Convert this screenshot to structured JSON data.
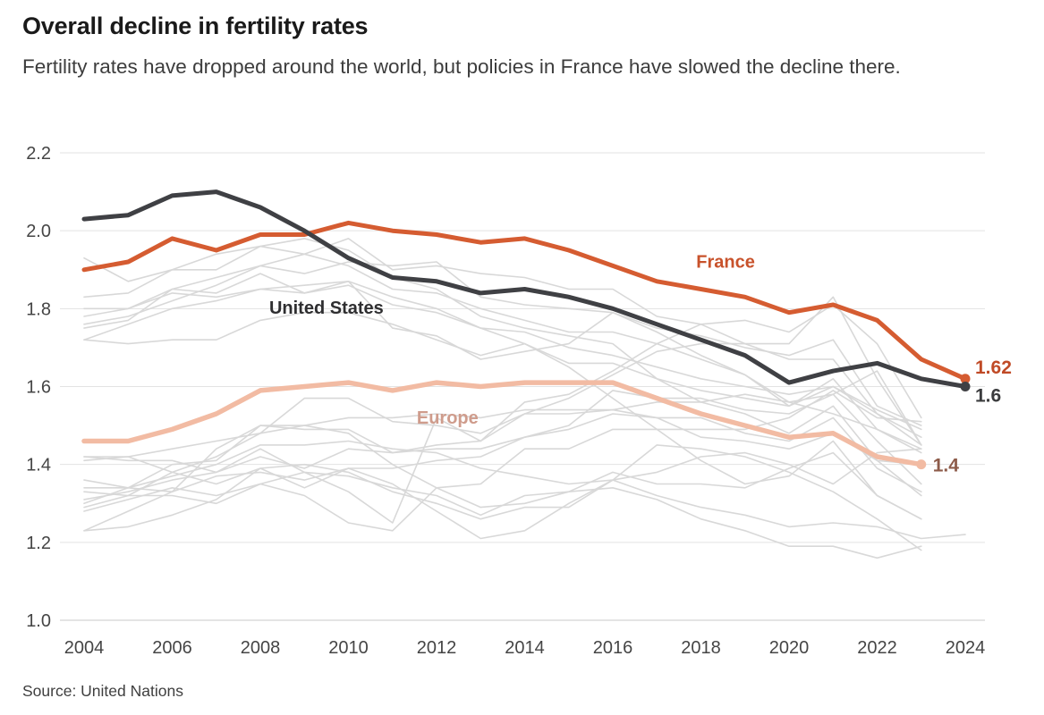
{
  "header": {
    "title": "Overall decline in fertility rates",
    "subtitle": "Fertility rates have dropped around the world, but policies in France have slowed the decline there."
  },
  "source": {
    "label": "Source: United Nations"
  },
  "chart_data": {
    "type": "line",
    "title": "Overall decline in fertility rates",
    "xlabel": "",
    "ylabel": "",
    "x_range": [
      2004,
      2024
    ],
    "x_ticks": [
      2004,
      2006,
      2008,
      2010,
      2012,
      2014,
      2016,
      2018,
      2020,
      2022,
      2024
    ],
    "y_range": [
      1.0,
      2.2
    ],
    "y_ticks": [
      "1.0",
      "1.2",
      "1.4",
      "1.6",
      "1.8",
      "2.0",
      "2.2"
    ],
    "grid": true,
    "legend": "inline labels on lines",
    "series": [
      {
        "name": "Europe",
        "color": "#f2bba3",
        "label_color": "#cf9c8c",
        "start_year": 2004,
        "values": [
          1.46,
          1.46,
          1.49,
          1.53,
          1.59,
          1.6,
          1.61,
          1.59,
          1.61,
          1.6,
          1.61,
          1.61,
          1.61,
          1.57,
          1.53,
          1.5,
          1.47,
          1.48,
          1.42,
          1.4
        ],
        "end_label": "1.4",
        "end_label_color": "#8d5b4a",
        "line_width": 5.5
      },
      {
        "name": "France",
        "color": "#d55c31",
        "label_color": "#c8522b",
        "start_year": 2004,
        "values": [
          1.9,
          1.92,
          1.98,
          1.95,
          1.99,
          1.99,
          2.02,
          2.0,
          1.99,
          1.97,
          1.98,
          1.95,
          1.91,
          1.87,
          1.85,
          1.83,
          1.79,
          1.81,
          1.77,
          1.67,
          1.62
        ],
        "end_label": "1.62",
        "end_label_color": "#c04a26",
        "line_width": 5
      },
      {
        "name": "United States",
        "color": "#3f4044",
        "label_color": "#2e2e30",
        "start_year": 2004,
        "values": [
          2.03,
          2.04,
          2.09,
          2.1,
          2.06,
          2.0,
          1.93,
          1.88,
          1.87,
          1.84,
          1.85,
          1.83,
          1.8,
          1.76,
          1.72,
          1.68,
          1.61,
          1.64,
          1.66,
          1.62,
          1.6
        ],
        "end_label": "1.6",
        "end_label_color": "#3b3c3e",
        "line_width": 5
      }
    ],
    "annotations": [
      {
        "text": "United States",
        "color": "#2e2e30",
        "year": 5.5,
        "value": 1.803,
        "font_size": 20
      },
      {
        "text": "France",
        "color": "#c8522b",
        "year": 14.56,
        "value": 1.921,
        "font_size": 20
      },
      {
        "text": "Europe",
        "color": "#cf9c8c",
        "year": 8.25,
        "value": 1.521,
        "font_size": 20
      }
    ],
    "background_series": {
      "description": "unlabeled light-gray context lines (individual countries)",
      "color": "#d8d8d8",
      "line_width": 1.6,
      "start_year": 2004,
      "lines": [
        [
          1.76,
          1.78,
          1.82,
          1.86,
          1.91,
          1.89,
          1.92,
          1.91,
          1.92,
          1.83,
          1.81,
          1.8,
          1.79,
          1.74,
          1.68,
          1.63,
          1.56,
          1.53,
          1.49,
          1.44
        ],
        [
          1.93,
          1.87,
          1.9,
          1.94,
          1.96,
          1.94,
          1.91,
          1.85,
          1.84,
          1.8,
          1.77,
          1.74,
          1.74,
          1.71,
          1.67,
          1.63,
          1.55,
          1.6,
          1.54,
          1.49
        ],
        [
          1.75,
          1.77,
          1.85,
          1.88,
          1.91,
          1.94,
          1.98,
          1.9,
          1.91,
          1.89,
          1.88,
          1.85,
          1.85,
          1.78,
          1.76,
          1.71,
          1.67,
          1.67,
          1.53,
          1.45
        ],
        [
          1.83,
          1.84,
          1.9,
          1.9,
          1.96,
          1.98,
          1.95,
          1.88,
          1.85,
          1.78,
          1.75,
          1.73,
          1.71,
          1.62,
          1.56,
          1.53,
          1.48,
          1.55,
          1.41,
          1.4
        ],
        [
          1.78,
          1.8,
          1.85,
          1.84,
          1.89,
          1.84,
          1.87,
          1.75,
          1.73,
          1.67,
          1.69,
          1.71,
          1.79,
          1.75,
          1.73,
          1.7,
          1.68,
          1.72,
          1.55,
          1.5
        ],
        [
          1.8,
          1.8,
          1.84,
          1.83,
          1.85,
          1.86,
          1.87,
          1.83,
          1.8,
          1.75,
          1.71,
          1.65,
          1.57,
          1.49,
          1.41,
          1.35,
          1.37,
          1.46,
          1.32,
          1.26
        ],
        [
          1.72,
          1.71,
          1.72,
          1.72,
          1.77,
          1.79,
          1.79,
          1.76,
          1.72,
          1.68,
          1.71,
          1.66,
          1.66,
          1.62,
          1.59,
          1.57,
          1.55,
          1.62,
          1.49,
          1.43
        ],
        [
          1.72,
          1.76,
          1.8,
          1.82,
          1.85,
          1.84,
          1.86,
          1.81,
          1.79,
          1.75,
          1.74,
          1.7,
          1.68,
          1.65,
          1.62,
          1.6,
          1.58,
          1.6,
          1.53,
          1.47
        ],
        [
          1.36,
          1.34,
          1.33,
          1.37,
          1.38,
          1.36,
          1.39,
          1.39,
          1.41,
          1.42,
          1.47,
          1.5,
          1.59,
          1.57,
          1.57,
          1.54,
          1.53,
          1.58,
          1.46,
          1.35
        ],
        [
          1.42,
          1.41,
          1.41,
          1.38,
          1.42,
          1.39,
          1.44,
          1.43,
          1.44,
          1.44,
          1.47,
          1.49,
          1.53,
          1.52,
          1.47,
          1.46,
          1.44,
          1.48,
          1.41,
          1.32
        ],
        [
          1.42,
          1.42,
          1.44,
          1.46,
          1.48,
          1.5,
          1.52,
          1.52,
          1.53,
          1.52,
          1.54,
          1.54,
          1.54,
          1.52,
          1.52,
          1.48,
          1.46,
          1.52,
          1.39,
          1.33
        ],
        [
          1.34,
          1.34,
          1.37,
          1.4,
          1.45,
          1.45,
          1.46,
          1.44,
          1.43,
          1.39,
          1.37,
          1.35,
          1.36,
          1.32,
          1.29,
          1.27,
          1.24,
          1.25,
          1.24,
          1.21,
          1.22
        ],
        [
          1.31,
          1.33,
          1.36,
          1.38,
          1.44,
          1.38,
          1.37,
          1.34,
          1.32,
          1.27,
          1.32,
          1.33,
          1.34,
          1.31,
          1.26,
          1.23,
          1.19,
          1.19,
          1.16,
          1.19
        ],
        [
          1.23,
          1.24,
          1.27,
          1.31,
          1.39,
          1.4,
          1.38,
          1.33,
          1.3,
          1.26,
          1.29,
          1.29,
          1.36,
          1.45,
          1.44,
          1.42,
          1.38,
          1.33,
          1.26,
          1.18
        ],
        [
          1.23,
          1.28,
          1.33,
          1.44,
          1.5,
          1.49,
          1.49,
          1.43,
          1.45,
          1.46,
          1.53,
          1.57,
          1.63,
          1.69,
          1.71,
          1.71,
          1.71,
          1.83,
          1.62,
          1.45
        ],
        [
          1.28,
          1.31,
          1.34,
          1.32,
          1.35,
          1.32,
          1.25,
          1.23,
          1.34,
          1.35,
          1.44,
          1.44,
          1.49,
          1.49,
          1.49,
          1.49,
          1.52,
          1.59,
          1.52,
          1.51
        ],
        [
          1.33,
          1.32,
          1.32,
          1.3,
          1.35,
          1.38,
          1.33,
          1.25,
          1.52,
          1.46,
          1.56,
          1.58,
          1.64,
          1.71,
          1.76,
          1.77,
          1.74,
          1.81,
          1.71,
          1.52
        ],
        [
          1.29,
          1.32,
          1.38,
          1.42,
          1.48,
          1.57,
          1.57,
          1.51,
          1.5,
          1.48,
          1.53,
          1.53,
          1.54,
          1.56,
          1.56,
          1.58,
          1.56,
          1.58,
          1.64,
          1.45
        ],
        [
          1.3,
          1.34,
          1.4,
          1.41,
          1.5,
          1.5,
          1.48,
          1.4,
          1.34,
          1.29,
          1.3,
          1.33,
          1.38,
          1.35,
          1.35,
          1.34,
          1.39,
          1.43,
          1.32,
          1.26
        ],
        [
          1.41,
          1.42,
          1.38,
          1.35,
          1.39,
          1.34,
          1.39,
          1.35,
          1.28,
          1.21,
          1.23,
          1.3,
          1.36,
          1.38,
          1.42,
          1.43,
          1.4,
          1.35,
          1.43,
          1.44
        ]
      ]
    },
    "colors": {
      "france": "#d55c31",
      "united_states": "#3f4044",
      "europe": "#f2bba3",
      "background_lines": "#d8d8d8",
      "gridline": "#e3e3e3",
      "baseline": "#c9c9c9",
      "axis_text": "#454545"
    }
  }
}
